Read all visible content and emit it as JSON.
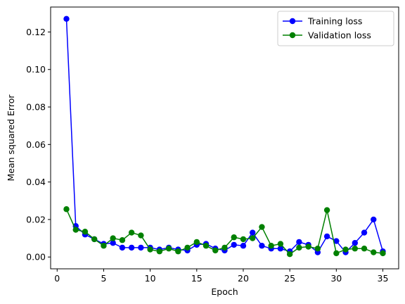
{
  "chart_data": {
    "type": "line",
    "title": "",
    "xlabel": "Epoch",
    "ylabel": "Mean squared Error",
    "xlim": [
      -0.7,
      36.7
    ],
    "ylim": [
      -0.0063,
      0.1333
    ],
    "xticks": [
      0,
      5,
      10,
      15,
      20,
      25,
      30,
      35
    ],
    "yticks": [
      0.0,
      0.02,
      0.04,
      0.06,
      0.08,
      0.1,
      0.12
    ],
    "ytick_labels": [
      "0.00",
      "0.02",
      "0.04",
      "0.06",
      "0.08",
      "0.10",
      "0.12"
    ],
    "grid": false,
    "legend_position": "top-right",
    "x": [
      1,
      2,
      3,
      4,
      5,
      6,
      7,
      8,
      9,
      10,
      11,
      12,
      13,
      14,
      15,
      16,
      17,
      18,
      19,
      20,
      21,
      22,
      23,
      24,
      25,
      26,
      27,
      28,
      29,
      30,
      31,
      32,
      33,
      34,
      35
    ],
    "series": [
      {
        "name": "Training loss",
        "color": "#0000ff",
        "values": [
          0.127,
          0.0165,
          0.012,
          0.0095,
          0.007,
          0.0075,
          0.005,
          0.005,
          0.005,
          0.005,
          0.004,
          0.005,
          0.004,
          0.0035,
          0.0065,
          0.007,
          0.0045,
          0.0035,
          0.0065,
          0.006,
          0.013,
          0.006,
          0.0045,
          0.0045,
          0.003,
          0.008,
          0.0065,
          0.0025,
          0.011,
          0.0085,
          0.0025,
          0.0075,
          0.013,
          0.02,
          0.003
        ]
      },
      {
        "name": "Validation loss",
        "color": "#008000",
        "values": [
          0.0255,
          0.0145,
          0.0135,
          0.0095,
          0.006,
          0.01,
          0.009,
          0.013,
          0.0115,
          0.004,
          0.003,
          0.0045,
          0.003,
          0.005,
          0.008,
          0.006,
          0.0035,
          0.005,
          0.0105,
          0.0095,
          0.01,
          0.016,
          0.006,
          0.007,
          0.0015,
          0.005,
          0.0055,
          0.0045,
          0.025,
          0.002,
          0.004,
          0.0045,
          0.0045,
          0.0025,
          0.002
        ]
      }
    ]
  }
}
